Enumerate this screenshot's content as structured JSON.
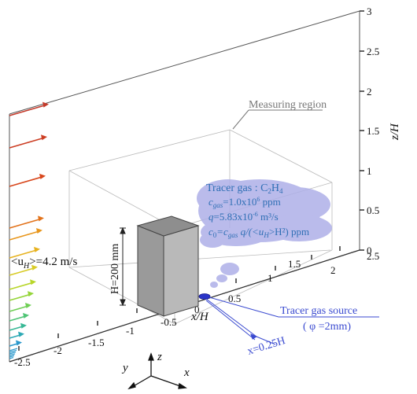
{
  "domain_note": "",
  "wind_profile": {
    "label_main": "<u",
    "label_sub": "H",
    "label_rest": ">=4.2 m/s",
    "arrow_colors": [
      "#c43a2a",
      "#cc3d22",
      "#d8471c",
      "#e2721a",
      "#e8961c",
      "#e7b21f",
      "#d8cb26",
      "#b8d62a",
      "#95d53a",
      "#6fcf55",
      "#4fc475",
      "#38b895",
      "#2da9b5",
      "#2a98cc"
    ]
  },
  "building": {
    "height_label": "H=200 mm",
    "fill": "#a8a8a8"
  },
  "measuring_region": {
    "label": "Measuring region"
  },
  "tracer": {
    "title": "Tracer gas : C",
    "title_sub": "2",
    "title_mid": "H",
    "title_sub2": "4",
    "line_cgas_a": "c",
    "line_cgas_sub": "gas",
    "line_cgas_b": "=1.0x10",
    "line_cgas_sup": "6",
    "line_cgas_c": " ppm",
    "line_q_a": "q",
    "line_q_b": "=5.83x10",
    "line_q_sup": "-6",
    "line_q_c": "  m³/s",
    "line_c0_a": "c",
    "line_c0_sub": "0",
    "line_c0_b": "=c",
    "line_c0_sub2": "gas",
    "line_c0_c": " q/(<u",
    "line_c0_sub3": "H",
    "line_c0_d": ">H²) ppm",
    "cloud_color": "#a9abe6",
    "text_color": "#2f6fb5"
  },
  "source": {
    "label": "Tracer gas source",
    "diameter": "( φ =2mm)",
    "offset": "x=0.25H",
    "color": "#3a4ad0"
  },
  "axes": {
    "z_title": "z/H",
    "x_title": "x/H",
    "z_ticks": [
      "3",
      "2.5",
      "2",
      "1.5",
      "1",
      "0.5",
      "0"
    ],
    "x_ticks_right": [
      "2.5",
      "2",
      "1.5",
      "1",
      "0.5"
    ],
    "x_ticks_left": [
      "-0.5",
      "-1",
      "-1.5",
      "-2",
      "-2.5"
    ],
    "zero_label": "0"
  },
  "triad": {
    "x": "x",
    "y": "y",
    "z": "z"
  }
}
